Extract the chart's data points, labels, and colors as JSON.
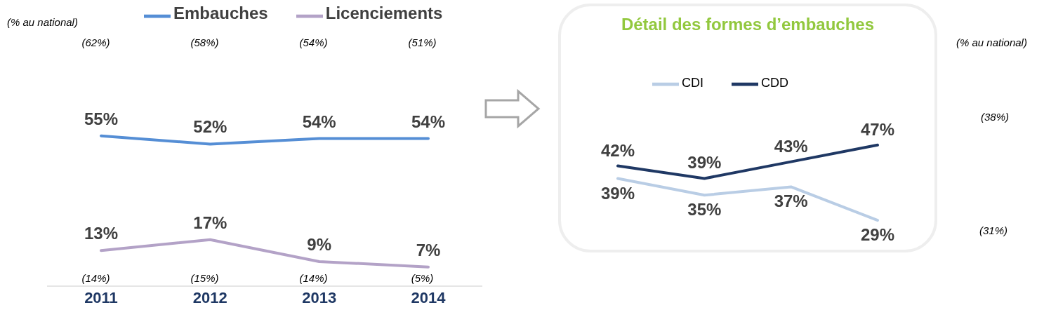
{
  "chart_data": [
    {
      "type": "line",
      "categories": [
        "2011",
        "2012",
        "2013",
        "2014"
      ],
      "legend": "top",
      "series": [
        {
          "name": "Embauches",
          "color": "#558ed5",
          "values": [
            55,
            52,
            54,
            54
          ],
          "value_labels": [
            "55%",
            "52%",
            "54%",
            "54%"
          ]
        },
        {
          "name": "Licenciements",
          "color": "#b3a2c7",
          "values": [
            13,
            17,
            9,
            7
          ],
          "value_labels": [
            "13%",
            "17%",
            "9%",
            "7%"
          ]
        }
      ],
      "annotations": [
        "(% au national)",
        "(62%)",
        "(58%)",
        "(54%)",
        "(51%)",
        "(14%)",
        "(15%)",
        "(14%)",
        "(5%)"
      ]
    },
    {
      "type": "line",
      "title": "Détail des formes d’embauches",
      "categories": [
        null,
        null,
        null,
        null
      ],
      "legend": "top",
      "series": [
        {
          "name": "CDI",
          "color": "#b9cde5",
          "values": [
            39,
            35,
            37,
            29
          ],
          "value_labels": [
            "39%",
            "35%",
            "37%",
            "29%"
          ]
        },
        {
          "name": "CDD",
          "color": "#1f3864",
          "values": [
            42,
            39,
            43,
            47
          ],
          "value_labels": [
            "42%",
            "39%",
            "43%",
            "47%"
          ]
        }
      ],
      "annotations": [
        "(% au national)",
        "(38%)",
        "(31%)"
      ]
    }
  ]
}
